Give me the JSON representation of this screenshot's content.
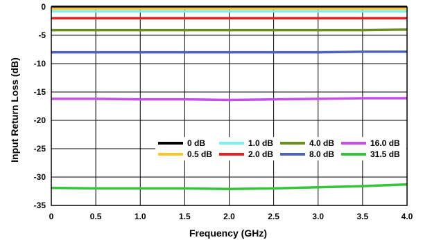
{
  "chart_data": {
    "type": "line",
    "title": "",
    "xlabel": "Frequency (GHz)",
    "ylabel": "Input Return Loss (dB)",
    "xlim": [
      0,
      4.0
    ],
    "ylim": [
      -35,
      0
    ],
    "grid": true,
    "legend_position": "lower-right",
    "x_ticks": [
      "0",
      "0.5",
      "1.0",
      "1.5",
      "2.0",
      "2.5",
      "3.0",
      "3.5",
      "4.0"
    ],
    "y_ticks": [
      "0",
      "-5",
      "-10",
      "-15",
      "-20",
      "-25",
      "-30",
      "-35"
    ],
    "x": [
      0,
      0.5,
      1.0,
      1.5,
      2.0,
      2.5,
      3.0,
      3.5,
      4.0
    ],
    "series": [
      {
        "name": "0 dB",
        "color": "#000000",
        "values": [
          0.0,
          0.0,
          0.0,
          0.0,
          0.0,
          0.0,
          0.0,
          0.0,
          0.0
        ]
      },
      {
        "name": "1.0 dB",
        "color": "#7df0f0",
        "values": [
          -0.8,
          -0.8,
          -0.8,
          -0.8,
          -0.8,
          -0.8,
          -0.8,
          -0.8,
          -0.8
        ]
      },
      {
        "name": "4.0 dB",
        "color": "#6b8e23",
        "values": [
          -4.1,
          -4.1,
          -4.1,
          -4.1,
          -4.1,
          -4.1,
          -4.1,
          -4.1,
          -4.0
        ]
      },
      {
        "name": "16.0 dB",
        "color": "#c44ee8",
        "values": [
          -16.2,
          -16.2,
          -16.3,
          -16.3,
          -16.4,
          -16.3,
          -16.2,
          -16.1,
          -16.1
        ]
      },
      {
        "name": "0.5 dB",
        "color": "#ffc72c",
        "values": [
          -0.3,
          -0.3,
          -0.3,
          -0.3,
          -0.3,
          -0.3,
          -0.3,
          -0.3,
          -0.3
        ]
      },
      {
        "name": "2.0 dB",
        "color": "#e8201f",
        "values": [
          -2.0,
          -2.0,
          -2.0,
          -2.0,
          -2.0,
          -2.0,
          -2.0,
          -2.0,
          -2.0
        ]
      },
      {
        "name": "8.0 dB",
        "color": "#4f60bd",
        "values": [
          -8.0,
          -8.0,
          -8.0,
          -8.0,
          -8.0,
          -8.0,
          -8.0,
          -7.9,
          -7.9
        ]
      },
      {
        "name": "31.5 dB",
        "color": "#35c43a",
        "values": [
          -31.9,
          -32.0,
          -32.0,
          -32.0,
          -32.1,
          -32.0,
          -31.8,
          -31.6,
          -31.3
        ]
      }
    ]
  }
}
